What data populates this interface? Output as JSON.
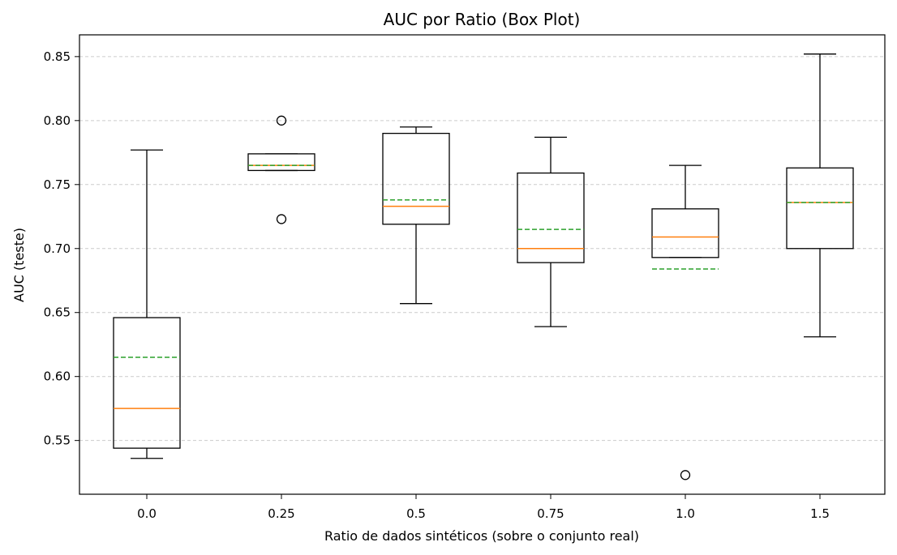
{
  "chart_data": {
    "type": "box",
    "title": "AUC por Ratio (Box Plot)",
    "xlabel": "Ratio de dados sintéticos (sobre o conjunto real)",
    "ylabel": "AUC (teste)",
    "ylim": [
      0.508,
      0.867
    ],
    "y_ticks": [
      "0.55",
      "0.60",
      "0.65",
      "0.70",
      "0.75",
      "0.80",
      "0.85"
    ],
    "grid": "horizontal dashed",
    "categories": [
      "0.0",
      "0.25",
      "0.5",
      "0.75",
      "1.0",
      "1.5"
    ],
    "boxes": [
      {
        "whisker_low": 0.536,
        "q1": 0.544,
        "median": 0.575,
        "mean": 0.615,
        "q3": 0.646,
        "whisker_high": 0.777,
        "outliers": []
      },
      {
        "whisker_low": 0.761,
        "q1": 0.761,
        "median": 0.765,
        "mean": 0.765,
        "q3": 0.774,
        "whisker_high": 0.774,
        "outliers": [
          0.8,
          0.723
        ]
      },
      {
        "whisker_low": 0.657,
        "q1": 0.719,
        "median": 0.733,
        "mean": 0.738,
        "q3": 0.79,
        "whisker_high": 0.795,
        "outliers": []
      },
      {
        "whisker_low": 0.639,
        "q1": 0.689,
        "median": 0.7,
        "mean": 0.715,
        "q3": 0.759,
        "whisker_high": 0.787,
        "outliers": []
      },
      {
        "whisker_low": 0.693,
        "q1": 0.693,
        "median": 0.709,
        "mean": 0.684,
        "q3": 0.731,
        "whisker_high": 0.765,
        "outliers": [
          0.523
        ]
      },
      {
        "whisker_low": 0.631,
        "q1": 0.7,
        "median": 0.736,
        "mean": 0.736,
        "q3": 0.763,
        "whisker_high": 0.852,
        "outliers": []
      }
    ],
    "colors": {
      "box": "#000000",
      "median": "#ff7f0e",
      "mean": "#2ca02c",
      "grid": "#cccccc"
    }
  }
}
